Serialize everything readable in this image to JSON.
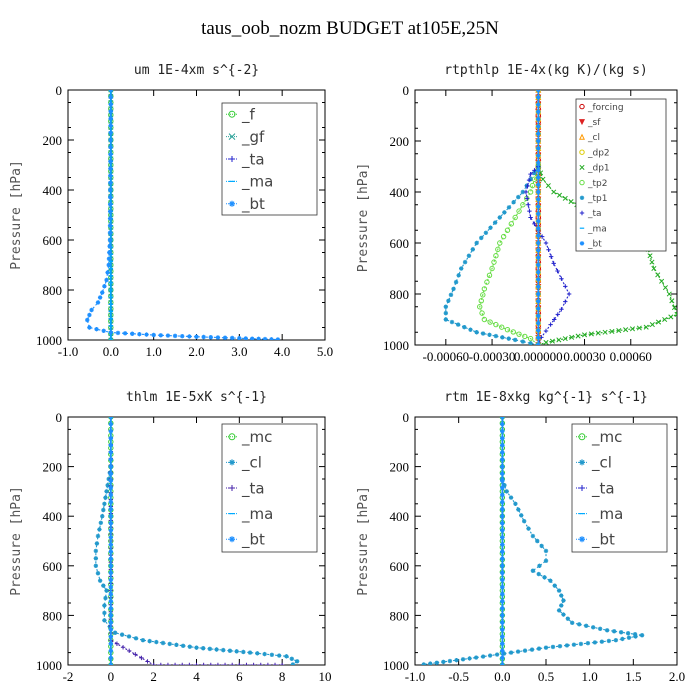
{
  "page": {
    "title": "taus_oob_nozm  BUDGET at105E,25N"
  },
  "chart_data": [
    {
      "type": "line",
      "title": "um  1E-4xm s^{-2}",
      "ylabel": "Pressure [hPa]",
      "xlim": [
        -1,
        5
      ],
      "ylim": [
        1000,
        0
      ],
      "xticks": [
        "-1.0",
        "0.0",
        "1.0",
        "2.0",
        "3.0",
        "4.0",
        "5.0"
      ],
      "xtick_values": [
        -1,
        0,
        1,
        2,
        3,
        4,
        5
      ],
      "yticks": [
        "0",
        "200",
        "400",
        "600",
        "800",
        "1000"
      ],
      "ytick_values": [
        0,
        200,
        400,
        600,
        800,
        1000
      ],
      "legend": "top-right",
      "series": [
        {
          "name": "_f",
          "color": "#33cc33",
          "marker": "o",
          "x": [
            0,
            0,
            0,
            0,
            0,
            0,
            0,
            0,
            0,
            0,
            0
          ],
          "y": [
            0,
            100,
            200,
            300,
            400,
            500,
            600,
            700,
            800,
            900,
            1000
          ]
        },
        {
          "name": "_gf",
          "color": "#2aa198",
          "marker": "x",
          "x": [
            0,
            0,
            0,
            0,
            0,
            0,
            0,
            0,
            0,
            0,
            0
          ],
          "y": [
            0,
            100,
            200,
            300,
            400,
            500,
            600,
            700,
            800,
            900,
            1000
          ]
        },
        {
          "name": "_ta",
          "color": "#2222cc",
          "marker": "+",
          "x": [
            0,
            0,
            0,
            0,
            0,
            0
          ],
          "y": [
            0,
            200,
            400,
            600,
            800,
            1000
          ]
        },
        {
          "name": "_ma",
          "color": "#00aaff",
          "marker": "-",
          "x": [
            0,
            0,
            0,
            0,
            0,
            0
          ],
          "y": [
            0,
            200,
            400,
            600,
            800,
            1000
          ]
        },
        {
          "name": "_bt",
          "color": "#1e90ff",
          "marker": "*",
          "x": [
            0,
            -0.02,
            -0.05,
            -0.1,
            -0.2,
            -0.3,
            -0.45,
            -0.55,
            -0.5,
            0.0,
            1.0,
            2.0,
            3.0,
            3.9
          ],
          "y": [
            0,
            600,
            700,
            760,
            810,
            850,
            880,
            920,
            950,
            970,
            980,
            987,
            993,
            998
          ]
        }
      ]
    },
    {
      "type": "line",
      "title": "rtpthlp  1E-4x(kg K)/(kg s)",
      "ylabel": "Pressure [hPa]",
      "xlim": [
        -0.0008,
        0.0009
      ],
      "ylim": [
        1000,
        0
      ],
      "xticks": [
        "-0.00060",
        "-0.00030",
        "0.000000",
        "0.00030",
        "0.00060"
      ],
      "xtick_values": [
        -0.0006,
        -0.0003,
        0.0,
        0.0003,
        0.0006
      ],
      "yticks": [
        "0",
        "200",
        "400",
        "600",
        "800",
        "1000"
      ],
      "ytick_values": [
        0,
        200,
        400,
        600,
        800,
        1000
      ],
      "legend": "top-right",
      "series": [
        {
          "name": "_forcing",
          "color": "#cc0000",
          "marker": "o",
          "x": [
            0,
            0,
            0,
            0,
            0,
            0,
            0,
            0,
            0,
            0,
            0
          ],
          "y": [
            0,
            100,
            200,
            300,
            400,
            500,
            600,
            700,
            800,
            900,
            1000
          ]
        },
        {
          "name": "_sf",
          "color": "#dd2222",
          "marker": "v",
          "x": [
            0,
            0,
            0,
            0,
            0,
            0
          ],
          "y": [
            0,
            200,
            400,
            600,
            800,
            1000
          ]
        },
        {
          "name": "_cl",
          "color": "#ff9900",
          "marker": "^",
          "x": [
            0,
            0,
            0,
            0,
            0,
            0
          ],
          "y": [
            0,
            200,
            400,
            600,
            800,
            1000
          ]
        },
        {
          "name": "_dp2",
          "color": "#ddcc00",
          "marker": "o",
          "x": [
            0,
            0,
            0,
            0,
            0,
            0
          ],
          "y": [
            0,
            200,
            400,
            600,
            800,
            1000
          ]
        },
        {
          "name": "_dp1",
          "color": "#22aa22",
          "marker": "x",
          "x": [
            0,
            3e-05,
            0.0001,
            0.00025,
            0.00045,
            0.0006,
            0.0007,
            0.00075,
            0.00085,
            0.0009,
            0.0007,
            0.0003,
            5e-05,
            0
          ],
          "y": [
            300,
            350,
            400,
            450,
            500,
            550,
            600,
            700,
            800,
            880,
            930,
            960,
            990,
            1000
          ]
        },
        {
          "name": "_tp2",
          "color": "#66dd44",
          "marker": "o",
          "x": [
            0,
            -5e-05,
            -0.00015,
            -0.00025,
            -0.0003,
            -0.00035,
            -0.00038,
            -0.00035,
            -0.0002,
            -5e-05,
            0
          ],
          "y": [
            300,
            400,
            500,
            600,
            700,
            780,
            850,
            900,
            940,
            975,
            1000
          ]
        },
        {
          "name": "_tp1",
          "color": "#2299cc",
          "marker": "*",
          "x": [
            0,
            -0.0001,
            -0.00025,
            -0.0004,
            -0.0005,
            -0.00055,
            -0.0006,
            -0.0006,
            -0.0004,
            -0.00015,
            0
          ],
          "y": [
            300,
            400,
            500,
            600,
            700,
            780,
            850,
            900,
            950,
            980,
            1000
          ]
        },
        {
          "name": "_ta",
          "color": "#2222cc",
          "marker": "+",
          "x": [
            0,
            -5e-05,
            -8e-05,
            -5e-05,
            5e-05,
            0.0001,
            0.00015,
            0.0002,
            0.00015,
            8e-05,
            2e-05,
            0
          ],
          "y": [
            300,
            330,
            400,
            500,
            600,
            680,
            740,
            800,
            860,
            920,
            970,
            1000
          ]
        },
        {
          "name": "_ma",
          "color": "#00aaff",
          "marker": "-",
          "x": [
            0,
            0,
            0,
            0,
            0,
            0
          ],
          "y": [
            0,
            200,
            400,
            600,
            800,
            1000
          ]
        },
        {
          "name": "_bt",
          "color": "#1e90ff",
          "marker": "*",
          "x": [
            0,
            0,
            0,
            0,
            0,
            0
          ],
          "y": [
            0,
            200,
            400,
            600,
            800,
            1000
          ]
        }
      ]
    },
    {
      "type": "line",
      "title": "thlm  1E-5xK s^{-1}",
      "ylabel": "Pressure [hPa]",
      "xlim": [
        -2,
        10
      ],
      "ylim": [
        1000,
        0
      ],
      "xticks": [
        "-2",
        "0",
        "2",
        "4",
        "6",
        "8",
        "10"
      ],
      "xtick_values": [
        -2,
        0,
        2,
        4,
        6,
        8,
        10
      ],
      "yticks": [
        "0",
        "200",
        "400",
        "600",
        "800",
        "1000"
      ],
      "ytick_values": [
        0,
        200,
        400,
        600,
        800,
        1000
      ],
      "legend": "top-right",
      "series": [
        {
          "name": "_mc",
          "color": "#33cc33",
          "marker": "o",
          "x": [
            0,
            0,
            0,
            0,
            0,
            0,
            0,
            0,
            0,
            0,
            0
          ],
          "y": [
            0,
            100,
            200,
            300,
            400,
            500,
            600,
            700,
            800,
            900,
            1000
          ]
        },
        {
          "name": "_cl",
          "color": "#2299cc",
          "marker": "*",
          "x": [
            0,
            -0.2,
            -0.4,
            -0.6,
            -0.7,
            -0.7,
            -0.5,
            -0.2,
            -0.3,
            -0.3,
            0.2,
            1.5,
            4,
            6.5,
            8.2,
            8.7,
            8.5
          ],
          "y": [
            200,
            300,
            400,
            480,
            540,
            600,
            660,
            700,
            760,
            820,
            870,
            900,
            930,
            950,
            965,
            985,
            998
          ]
        },
        {
          "name": "_ta",
          "color": "#4422aa",
          "marker": "+",
          "x": [
            0,
            0,
            0,
            2,
            4,
            6,
            8
          ],
          "y": [
            0,
            500,
            900,
            1000,
            1000,
            1000,
            1000
          ]
        },
        {
          "name": "_ma",
          "color": "#00aaff",
          "marker": "-",
          "x": [
            0,
            0,
            0,
            0,
            0,
            0
          ],
          "y": [
            0,
            200,
            400,
            600,
            800,
            1000
          ]
        },
        {
          "name": "_bt",
          "color": "#1e90ff",
          "marker": "*",
          "x": [
            0,
            0,
            0,
            0,
            0,
            0
          ],
          "y": [
            0,
            200,
            400,
            600,
            800,
            1000
          ]
        }
      ]
    },
    {
      "type": "line",
      "title": "rtm  1E-8xkg kg^{-1} s^{-1}",
      "ylabel": "Pressure [hPa]",
      "xlim": [
        -1,
        2
      ],
      "ylim": [
        1000,
        0
      ],
      "xticks": [
        "-1.0",
        "-0.5",
        "0.0",
        "0.5",
        "1.0",
        "1.5",
        "2.0"
      ],
      "xtick_values": [
        -1,
        -0.5,
        0,
        0.5,
        1,
        1.5,
        2
      ],
      "yticks": [
        "0",
        "200",
        "400",
        "600",
        "800",
        "1000"
      ],
      "ytick_values": [
        0,
        200,
        400,
        600,
        800,
        1000
      ],
      "legend": "top-right",
      "series": [
        {
          "name": "_mc",
          "color": "#33cc33",
          "marker": "o",
          "x": [
            0,
            0,
            0,
            0,
            0,
            0,
            0,
            0,
            0,
            0,
            0
          ],
          "y": [
            0,
            100,
            200,
            300,
            400,
            500,
            600,
            700,
            800,
            900,
            1000
          ]
        },
        {
          "name": "_cl",
          "color": "#2299cc",
          "marker": "*",
          "x": [
            0,
            0.05,
            0.15,
            0.25,
            0.35,
            0.5,
            0.5,
            0.35,
            0.55,
            0.65,
            0.7,
            0.65,
            0.8,
            1.2,
            1.6,
            1.3,
            0.5,
            -0.3,
            -0.9
          ],
          "y": [
            250,
            300,
            350,
            420,
            480,
            540,
            580,
            620,
            660,
            700,
            740,
            780,
            830,
            860,
            880,
            900,
            930,
            970,
            998
          ]
        },
        {
          "name": "_ta",
          "color": "#2222cc",
          "marker": "+",
          "x": [
            0,
            0,
            0,
            0,
            0,
            0
          ],
          "y": [
            0,
            200,
            400,
            600,
            800,
            1000
          ]
        },
        {
          "name": "_ma",
          "color": "#00aaff",
          "marker": "-",
          "x": [
            0,
            0,
            0,
            0,
            0,
            0
          ],
          "y": [
            0,
            200,
            400,
            600,
            800,
            1000
          ]
        },
        {
          "name": "_bt",
          "color": "#1e90ff",
          "marker": "*",
          "x": [
            0,
            0,
            0,
            0,
            0,
            0
          ],
          "y": [
            0,
            200,
            400,
            600,
            800,
            1000
          ]
        }
      ]
    }
  ]
}
